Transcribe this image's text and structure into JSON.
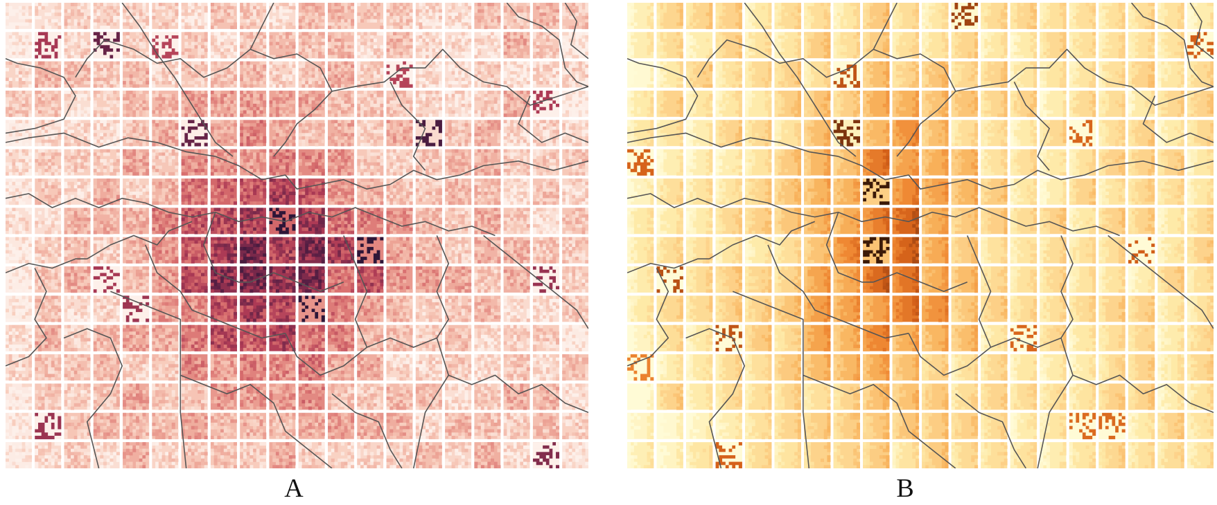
{
  "panels": [
    {
      "id": "A",
      "label": "A",
      "colormap": "reds",
      "colors": [
        "#fdf0ea",
        "#f8cdbd",
        "#eda597",
        "#d86e6e",
        "#ad3a55",
        "#5d2045",
        "#2e1638"
      ],
      "grid": {
        "rows": 16,
        "cols": 20
      }
    },
    {
      "id": "B",
      "label": "B",
      "colormap": "ylorbr",
      "colors": [
        "#fffbd6",
        "#feeaa8",
        "#fdd28a",
        "#f8b25b",
        "#ef8833",
        "#d35f18",
        "#8c3a10",
        "#3c1a08"
      ],
      "grid": {
        "rows": 16,
        "cols": 20
      }
    }
  ],
  "boundary_color": "#555555"
}
